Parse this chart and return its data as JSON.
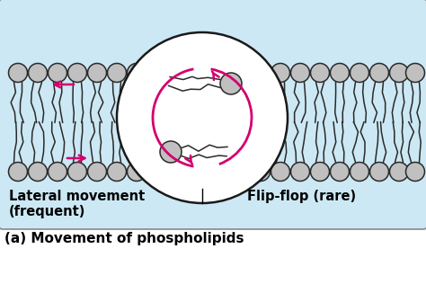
{
  "bg_color": "#cce8f4",
  "white_bg": "#ffffff",
  "head_color": "#c0c0c0",
  "head_edge": "#333333",
  "arrow_color": "#d4006e",
  "title_text": "(a) Movement of phospholipids",
  "label_lateral": "Lateral movement\n(frequent)",
  "label_flipflop": "Flip-flop (rare)",
  "figsize": [
    4.74,
    3.26
  ],
  "dpi": 100,
  "xlim": [
    0,
    47.4
  ],
  "ylim": [
    0,
    32.6
  ]
}
